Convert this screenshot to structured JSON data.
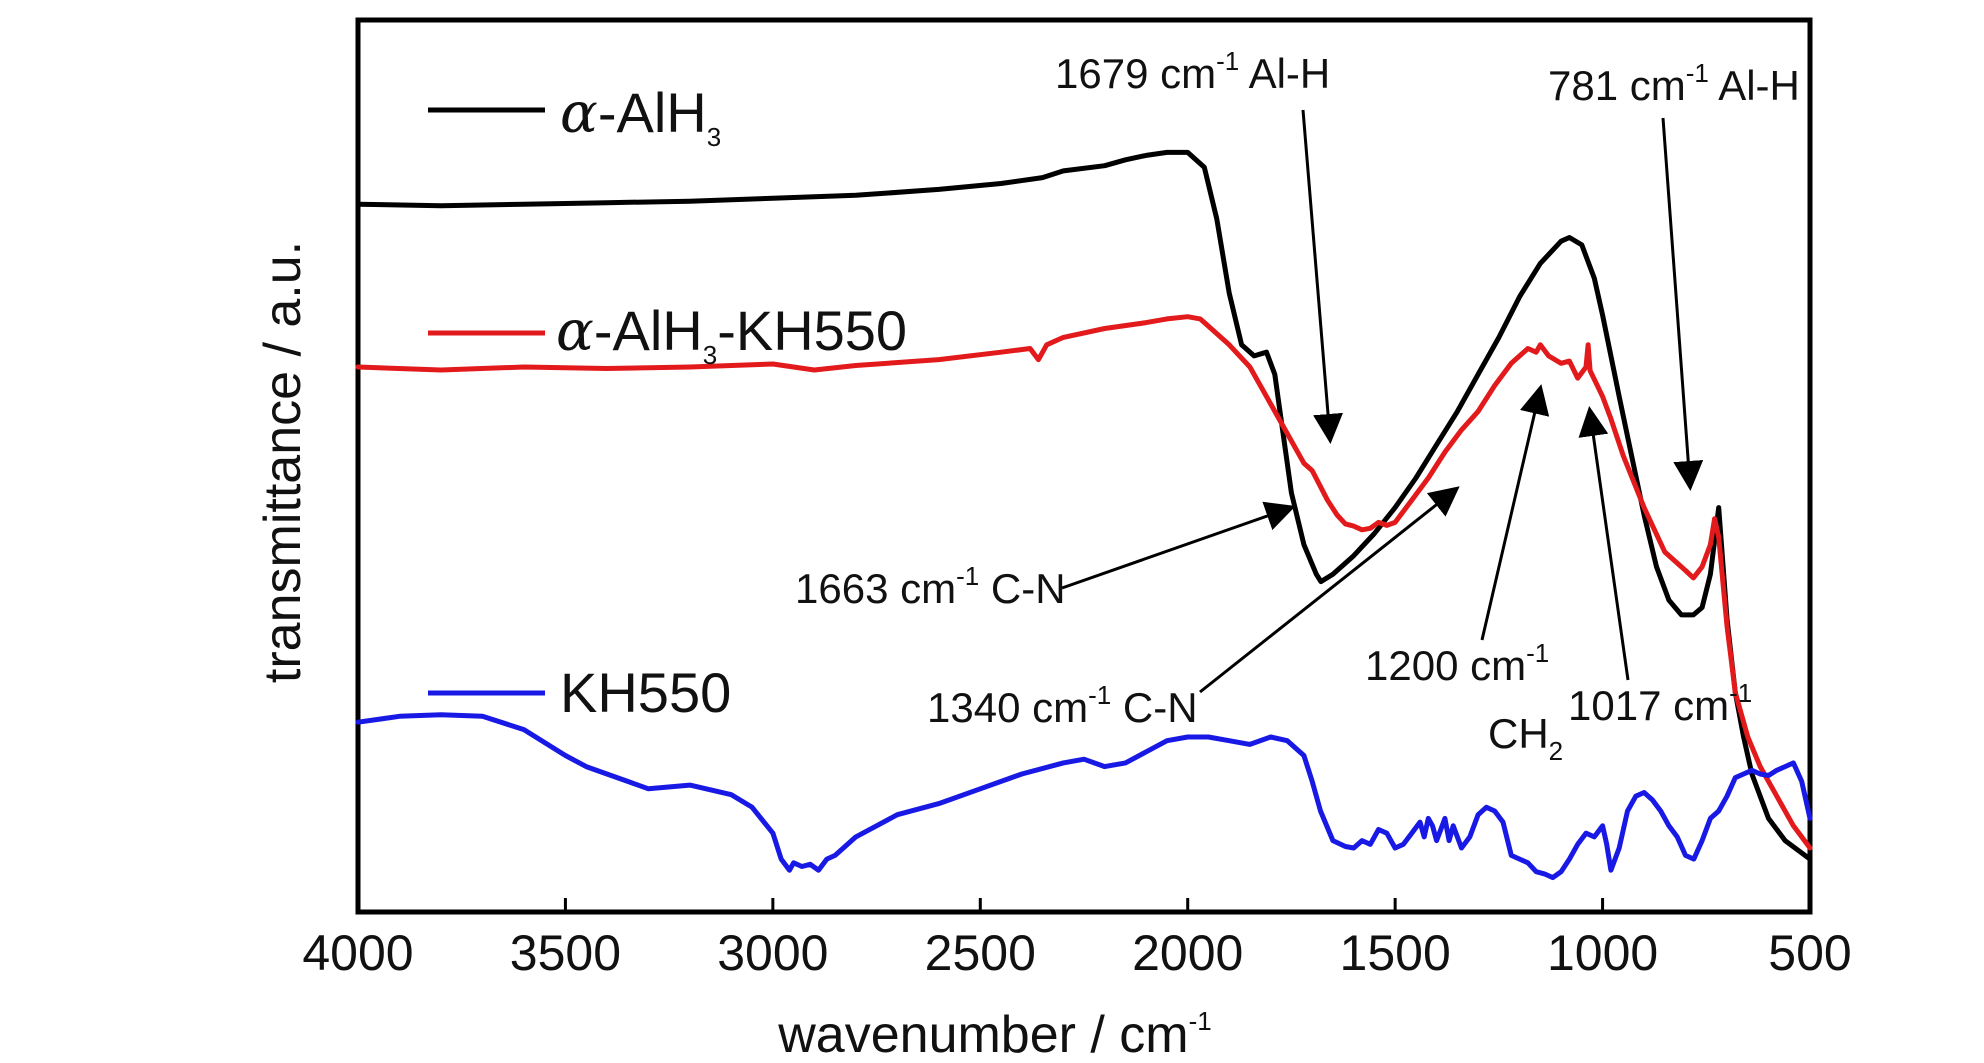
{
  "chart_data": {
    "type": "line",
    "xlabel": "wavenumber / cm",
    "xlabel_sup": "-1",
    "ylabel": "transmittance / a.u.",
    "xlim": [
      4000,
      500
    ],
    "x_reversed": true,
    "ylim": [
      0,
      100
    ],
    "x_ticks": [
      4000,
      3500,
      3000,
      2500,
      2000,
      1500,
      1000,
      500
    ],
    "grid": false,
    "legend_position": "top-left",
    "series": [
      {
        "name_prefix": "α",
        "name_main": "-AlH",
        "name_sub": "3",
        "name_suffix": "",
        "color": "#000000",
        "x": [
          4000,
          3800,
          3600,
          3400,
          3200,
          3000,
          2800,
          2600,
          2450,
          2350,
          2300,
          2200,
          2150,
          2100,
          2050,
          2000,
          1960,
          1930,
          1900,
          1870,
          1840,
          1810,
          1790,
          1770,
          1750,
          1720,
          1690,
          1679,
          1650,
          1600,
          1550,
          1500,
          1450,
          1400,
          1350,
          1300,
          1250,
          1200,
          1150,
          1100,
          1080,
          1050,
          1020,
          1000,
          960,
          930,
          900,
          870,
          840,
          810,
          781,
          760,
          740,
          720,
          700,
          680,
          660,
          640,
          620,
          600,
          560,
          500
        ],
        "y": [
          92.0,
          91.8,
          92.0,
          92.2,
          92.4,
          92.8,
          93.2,
          94.0,
          94.8,
          95.6,
          96.5,
          97.2,
          98.0,
          98.6,
          99.0,
          99.0,
          97.0,
          90.0,
          80.0,
          73.0,
          71.5,
          72.0,
          69.0,
          61.0,
          53.0,
          46.0,
          42.0,
          41.0,
          42.0,
          44.5,
          47.5,
          51.0,
          55.0,
          59.5,
          64.0,
          69.0,
          74.0,
          79.5,
          84.0,
          87.0,
          87.5,
          86.5,
          82.0,
          77.0,
          66.0,
          58.0,
          50.0,
          43.0,
          38.5,
          36.5,
          36.5,
          37.5,
          42.0,
          51.0,
          36.0,
          26.0,
          20.0,
          15.0,
          12.0,
          9.0,
          6.0,
          3.5
        ]
      },
      {
        "name_prefix": "α",
        "name_main": "-AlH",
        "name_sub": "3",
        "name_suffix": "-KH550",
        "color": "#e31a1c",
        "x": [
          4000,
          3800,
          3600,
          3400,
          3200,
          3000,
          2900,
          2800,
          2600,
          2450,
          2380,
          2360,
          2340,
          2300,
          2200,
          2100,
          2050,
          2000,
          1970,
          1950,
          1900,
          1850,
          1800,
          1760,
          1720,
          1700,
          1663,
          1640,
          1620,
          1600,
          1580,
          1560,
          1540,
          1520,
          1500,
          1460,
          1420,
          1380,
          1340,
          1300,
          1260,
          1220,
          1200,
          1180,
          1160,
          1150,
          1130,
          1100,
          1080,
          1060,
          1040,
          1035,
          1030,
          1017,
          1000,
          980,
          950,
          900,
          850,
          800,
          781,
          760,
          740,
          730,
          720,
          700,
          680,
          650,
          620,
          580,
          540,
          500
        ],
        "y": [
          70.0,
          69.6,
          70.0,
          69.8,
          70.0,
          70.4,
          69.6,
          70.2,
          71.0,
          72.0,
          72.5,
          71.0,
          73.0,
          74.0,
          75.2,
          76.0,
          76.5,
          76.8,
          76.5,
          75.5,
          73.0,
          70.0,
          65.0,
          61.0,
          57.0,
          56.0,
          52.0,
          50.0,
          48.8,
          48.5,
          48.0,
          48.2,
          49.0,
          48.6,
          49.0,
          52.0,
          55.0,
          58.5,
          61.5,
          64.0,
          67.5,
          70.5,
          71.5,
          72.5,
          72.0,
          73.0,
          71.5,
          70.5,
          70.8,
          68.5,
          70.0,
          73.0,
          69.5,
          68.0,
          66.0,
          63.0,
          58.0,
          51.0,
          45.0,
          42.5,
          41.5,
          43.0,
          46.0,
          49.5,
          47.0,
          35.0,
          26.0,
          20.0,
          16.0,
          12.0,
          8.0,
          5.0
        ]
      },
      {
        "name_prefix": "",
        "name_main": "KH550",
        "name_sub": "",
        "name_suffix": "",
        "color": "#1919e6",
        "x": [
          4000,
          3900,
          3800,
          3700,
          3600,
          3500,
          3450,
          3400,
          3350,
          3300,
          3200,
          3100,
          3050,
          3000,
          2980,
          2960,
          2950,
          2930,
          2910,
          2890,
          2870,
          2850,
          2800,
          2750,
          2700,
          2600,
          2500,
          2400,
          2300,
          2250,
          2200,
          2150,
          2100,
          2050,
          2000,
          1950,
          1900,
          1850,
          1800,
          1760,
          1720,
          1700,
          1680,
          1650,
          1620,
          1600,
          1580,
          1560,
          1540,
          1520,
          1500,
          1480,
          1460,
          1440,
          1430,
          1420,
          1410,
          1400,
          1390,
          1380,
          1370,
          1360,
          1340,
          1320,
          1300,
          1280,
          1260,
          1240,
          1220,
          1200,
          1180,
          1160,
          1140,
          1120,
          1100,
          1080,
          1060,
          1040,
          1020,
          1000,
          990,
          980,
          960,
          940,
          920,
          900,
          880,
          860,
          840,
          820,
          800,
          780,
          760,
          740,
          720,
          700,
          680,
          660,
          640,
          620,
          600,
          580,
          560,
          540,
          520,
          500
        ],
        "y": [
          22.0,
          22.8,
          23.0,
          22.8,
          21.0,
          17.5,
          16.0,
          15.0,
          14.0,
          13.0,
          13.5,
          12.2,
          10.5,
          7.0,
          3.5,
          2.0,
          3.0,
          2.5,
          2.8,
          2.0,
          3.5,
          4.0,
          6.5,
          8.0,
          9.5,
          11.0,
          13.0,
          15.0,
          16.5,
          17.0,
          16.0,
          16.5,
          18.0,
          19.5,
          20.0,
          20.0,
          19.5,
          19.0,
          20.0,
          19.5,
          17.5,
          14.0,
          10.0,
          6.0,
          5.2,
          5.0,
          6.0,
          5.5,
          7.5,
          7.0,
          5.0,
          5.5,
          7.0,
          8.5,
          6.5,
          9.0,
          8.0,
          6.0,
          7.5,
          9.0,
          6.0,
          8.0,
          5.0,
          6.5,
          9.5,
          10.5,
          10.0,
          8.5,
          4.0,
          3.5,
          3.0,
          1.8,
          1.5,
          1.0,
          1.8,
          3.5,
          5.5,
          7.0,
          6.5,
          8.0,
          5.5,
          2.0,
          5.0,
          10.0,
          12.0,
          12.5,
          11.5,
          10.0,
          8.0,
          6.5,
          4.0,
          3.5,
          6.0,
          9.0,
          10.0,
          12.0,
          14.5,
          15.0,
          15.5,
          15.0,
          14.8,
          15.5,
          16.0,
          16.5,
          14.0,
          9.0
        ]
      }
    ],
    "annotations": [
      {
        "main": "1679 cm",
        "sup": "-1",
        "tail": " Al-H",
        "tail_sub": "",
        "line2": "",
        "line2_sub": ""
      },
      {
        "main": "781 cm",
        "sup": "-1",
        "tail": " Al-H",
        "tail_sub": "",
        "line2": "",
        "line2_sub": ""
      },
      {
        "main": "1663 cm",
        "sup": "-1",
        "tail": "  C-N",
        "tail_sub": "",
        "line2": "",
        "line2_sub": ""
      },
      {
        "main": "1340 cm",
        "sup": "-1",
        "tail": "  C-N",
        "tail_sub": "",
        "line2": "",
        "line2_sub": ""
      },
      {
        "main": "1200 cm",
        "sup": "-1",
        "tail": "",
        "tail_sub": "",
        "line2": "CH",
        "line2_sub": "2"
      },
      {
        "main": "1017 cm",
        "sup": "-1",
        "tail": "",
        "tail_sub": "",
        "line2": "",
        "line2_sub": ""
      }
    ]
  }
}
